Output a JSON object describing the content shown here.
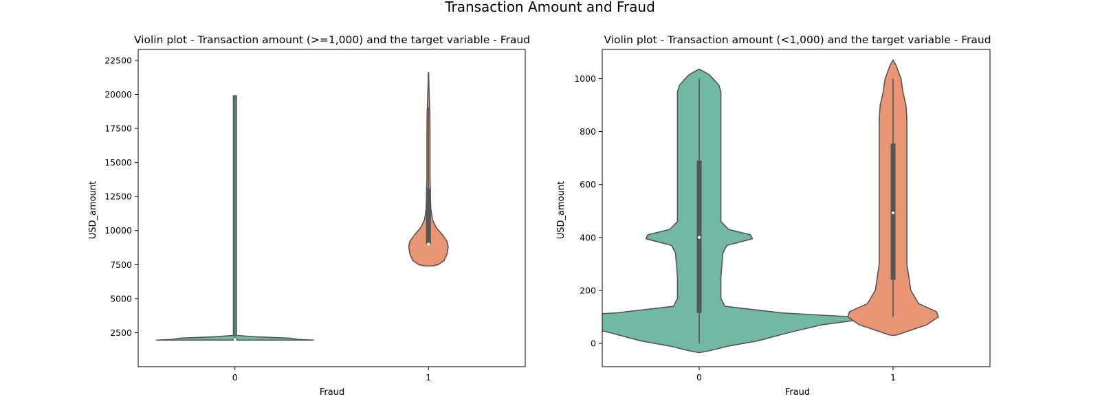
{
  "figure_title": "Transaction Amount and Fraud",
  "colors": {
    "class_0": "#72b8a2",
    "class_1": "#e99675",
    "edge": "#555555",
    "box": "#555555"
  },
  "chart_data": [
    {
      "type": "violin",
      "title": "Violin plot - Transaction amount (>=1,000) and the target variable - Fraud",
      "xlabel": "Fraud",
      "ylabel": "USD_amount",
      "categories": [
        "0",
        "1"
      ],
      "ylim": [
        0,
        23300
      ],
      "yticks": [
        2500,
        5000,
        7500,
        10000,
        12500,
        15000,
        17500,
        20000,
        22500
      ],
      "grid": false,
      "violins": [
        {
          "category": "0",
          "color": "#72b8a2",
          "density_profile": [
            [
              1950,
              0.4
            ],
            [
              2000,
              0.32
            ],
            [
              2100,
              0.28
            ],
            [
              2200,
              0.1
            ],
            [
              2300,
              0.008
            ],
            [
              5000,
              0.008
            ],
            [
              19900,
              0.008
            ]
          ],
          "min": 1950,
          "q1": 1980,
          "median": 2000,
          "q3": 2050,
          "whisker_low": 1950,
          "whisker_high": 19900
        },
        {
          "category": "1",
          "color": "#e99675",
          "density_profile": [
            [
              7400,
              0.02
            ],
            [
              7500,
              0.05
            ],
            [
              7800,
              0.08
            ],
            [
              8300,
              0.095
            ],
            [
              8800,
              0.1
            ],
            [
              9200,
              0.095
            ],
            [
              9700,
              0.07
            ],
            [
              10200,
              0.04
            ],
            [
              10800,
              0.02
            ],
            [
              11600,
              0.012
            ],
            [
              12500,
              0.01
            ],
            [
              14000,
              0.008
            ],
            [
              15500,
              0.008
            ],
            [
              17000,
              0.008
            ],
            [
              18500,
              0.007
            ],
            [
              19800,
              0.004
            ],
            [
              20800,
              0.002
            ],
            [
              21600,
              0.001
            ]
          ],
          "min": 9000,
          "q1": 9000,
          "median": 9000,
          "q3": 13100,
          "whisker_low": 9000,
          "whisker_high": 19050
        }
      ]
    },
    {
      "type": "violin",
      "title": "Violin plot - Transaction amount (<1,000) and the target variable - Fraud",
      "xlabel": "Fraud",
      "ylabel": "USD_amount",
      "categories": [
        "0",
        "1"
      ],
      "ylim": [
        -88,
        1110
      ],
      "yticks": [
        0,
        200,
        400,
        600,
        800,
        1000
      ],
      "grid": false,
      "violins": [
        {
          "category": "0",
          "color": "#72b8a2",
          "density_profile": [
            [
              -35,
              0.0
            ],
            [
              -28,
              0.05
            ],
            [
              -10,
              0.15
            ],
            [
              10,
              0.3
            ],
            [
              40,
              0.45
            ],
            [
              70,
              0.62
            ],
            [
              90,
              0.82
            ],
            [
              100,
              0.78
            ],
            [
              115,
              0.42
            ],
            [
              140,
              0.13
            ],
            [
              170,
              0.11
            ],
            [
              250,
              0.11
            ],
            [
              340,
              0.12
            ],
            [
              370,
              0.14
            ],
            [
              395,
              0.27
            ],
            [
              410,
              0.26
            ],
            [
              430,
              0.15
            ],
            [
              460,
              0.11
            ],
            [
              600,
              0.11
            ],
            [
              800,
              0.11
            ],
            [
              950,
              0.11
            ],
            [
              975,
              0.1
            ],
            [
              1000,
              0.07
            ],
            [
              1015,
              0.05
            ],
            [
              1030,
              0.015
            ],
            [
              1035,
              0.0
            ]
          ],
          "min": 0,
          "q1": 115,
          "median": 400,
          "q3": 690,
          "whisker_low": 0,
          "whisker_high": 1000
        },
        {
          "category": "1",
          "color": "#e99675",
          "density_profile": [
            [
              30,
              0.0
            ],
            [
              32,
              0.02
            ],
            [
              45,
              0.07
            ],
            [
              70,
              0.17
            ],
            [
              100,
              0.23
            ],
            [
              120,
              0.22
            ],
            [
              150,
              0.13
            ],
            [
              200,
              0.09
            ],
            [
              300,
              0.07
            ],
            [
              500,
              0.07
            ],
            [
              700,
              0.07
            ],
            [
              850,
              0.07
            ],
            [
              900,
              0.065
            ],
            [
              950,
              0.05
            ],
            [
              1000,
              0.04
            ],
            [
              1050,
              0.015
            ],
            [
              1070,
              0.0
            ]
          ],
          "min": 100,
          "q1": 240,
          "median": 493,
          "q3": 755,
          "whisker_low": 100,
          "whisker_high": 1000
        }
      ]
    }
  ]
}
